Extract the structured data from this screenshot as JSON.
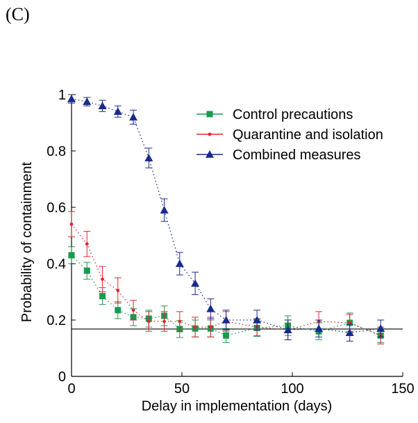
{
  "panel_label": "(C)",
  "colors": {
    "control": "#1a9a4f",
    "quarantine": "#e0262e",
    "combined": "#1a2a8c",
    "reference_line": "#000000"
  },
  "chart_data": {
    "type": "scatter",
    "title": "",
    "xlabel": "Delay in implementation (days)",
    "ylabel": "Probability of containment",
    "xlim": [
      0,
      150
    ],
    "ylim": [
      0,
      1
    ],
    "xticks": [
      0,
      50,
      100,
      150
    ],
    "xtick_labels": [
      "0",
      "50",
      "100",
      "150"
    ],
    "yticks": [
      0,
      0.2,
      0.4,
      0.6,
      0.8,
      1
    ],
    "ytick_labels": [
      "0",
      "0.2",
      "0.4",
      "0.6",
      "0.8",
      "1"
    ],
    "grid": false,
    "legend_position": "top-right",
    "reference_line": {
      "y": 0.168
    },
    "series": [
      {
        "name": "Control precautions",
        "marker": "square",
        "color_key": "control",
        "x": [
          0,
          7,
          14,
          21,
          28,
          35,
          42,
          49,
          56,
          63,
          70,
          84,
          98,
          112,
          126,
          140
        ],
        "y": [
          0.43,
          0.375,
          0.285,
          0.235,
          0.21,
          0.205,
          0.215,
          0.168,
          0.17,
          0.17,
          0.145,
          0.172,
          0.18,
          0.16,
          0.19,
          0.145
        ],
        "err": [
          0.03,
          0.03,
          0.03,
          0.03,
          0.03,
          0.03,
          0.035,
          0.03,
          0.03,
          0.03,
          0.025,
          0.03,
          0.035,
          0.03,
          0.035,
          0.025
        ]
      },
      {
        "name": "Quarantine and isolation",
        "marker": "dot",
        "color_key": "quarantine",
        "x": [
          0,
          7,
          14,
          21,
          28,
          35,
          42,
          49,
          56,
          63,
          70,
          84,
          98,
          112,
          126,
          140
        ],
        "y": [
          0.54,
          0.47,
          0.345,
          0.305,
          0.235,
          0.195,
          0.195,
          0.195,
          0.175,
          0.175,
          0.195,
          0.175,
          0.165,
          0.195,
          0.19,
          0.145
        ],
        "err": [
          0.045,
          0.045,
          0.045,
          0.045,
          0.035,
          0.035,
          0.035,
          0.035,
          0.035,
          0.035,
          0.035,
          0.03,
          0.035,
          0.035,
          0.03,
          0.03
        ]
      },
      {
        "name": "Combined measures",
        "marker": "triangle",
        "color_key": "combined",
        "x": [
          0,
          7,
          14,
          21,
          28,
          35,
          42,
          49,
          56,
          63,
          70,
          84,
          98,
          112,
          126,
          140
        ],
        "y": [
          0.985,
          0.975,
          0.96,
          0.94,
          0.92,
          0.775,
          0.59,
          0.4,
          0.33,
          0.24,
          0.2,
          0.2,
          0.165,
          0.17,
          0.155,
          0.17
        ],
        "err": [
          0.015,
          0.015,
          0.02,
          0.02,
          0.025,
          0.035,
          0.04,
          0.04,
          0.04,
          0.035,
          0.035,
          0.035,
          0.035,
          0.03,
          0.03,
          0.03
        ]
      }
    ]
  }
}
